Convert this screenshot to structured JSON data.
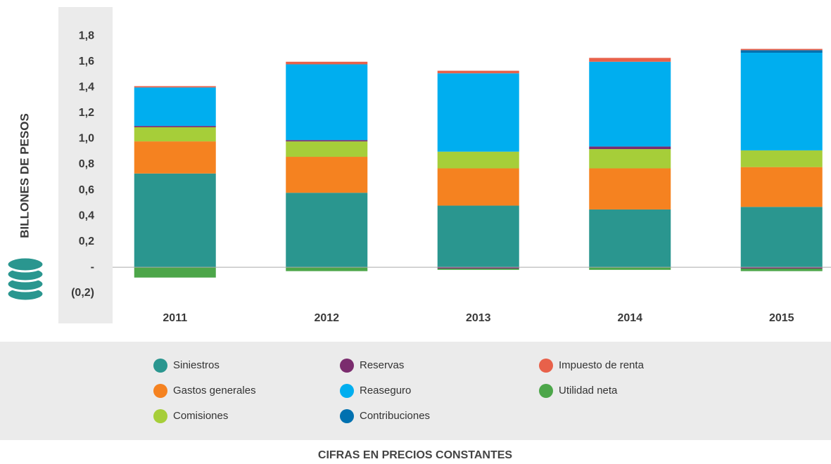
{
  "chart_data": {
    "type": "stacked_bar",
    "y_label": "BILLONES DE PESOS",
    "footer": "CIFRAS EN PRECIOS CONSTANTES",
    "categories": [
      "2011",
      "2012",
      "2013",
      "2014",
      "2015"
    ],
    "series": [
      {
        "name": "Siniestros",
        "color": "#2a968f",
        "values": [
          0.73,
          0.58,
          0.48,
          0.45,
          0.47
        ]
      },
      {
        "name": "Gastos generales",
        "color": "#f58220",
        "values": [
          0.25,
          0.28,
          0.29,
          0.32,
          0.31
        ]
      },
      {
        "name": "Comisiones",
        "color": "#a6ce39",
        "values": [
          0.11,
          0.12,
          0.13,
          0.15,
          0.13
        ]
      },
      {
        "name": "Reservas",
        "color": "#7b2c6e",
        "values": [
          0.01,
          0.01,
          -0.01,
          0.02,
          -0.01
        ]
      },
      {
        "name": "Reaseguro",
        "color": "#00aeef",
        "values": [
          0.3,
          0.59,
          0.61,
          0.66,
          0.76
        ]
      },
      {
        "name": "Contribuciones",
        "color": "#0071b0",
        "values": [
          0,
          0,
          0,
          0,
          0.02
        ]
      },
      {
        "name": "Impuesto de renta",
        "color": "#e8614a",
        "values": [
          0.01,
          0.02,
          0.02,
          0.03,
          0.01
        ]
      },
      {
        "name": "Utilidad neta",
        "color": "#4ca649",
        "values": [
          -0.08,
          -0.03,
          -0.01,
          -0.02,
          -0.02
        ]
      }
    ],
    "ylim": [
      -0.3,
      1.9
    ],
    "yticks": [
      {
        "value": -0.2,
        "label": "(0,2)"
      },
      {
        "value": 0,
        "label": "-"
      },
      {
        "value": 0.2,
        "label": "0,2"
      },
      {
        "value": 0.4,
        "label": "0,4"
      },
      {
        "value": 0.6,
        "label": "0,6"
      },
      {
        "value": 0.8,
        "label": "0,8"
      },
      {
        "value": 1.0,
        "label": "1,0"
      },
      {
        "value": 1.2,
        "label": "1,2"
      },
      {
        "value": 1.4,
        "label": "1,4"
      },
      {
        "value": 1.6,
        "label": "1,6"
      },
      {
        "value": 1.8,
        "label": "1,8"
      }
    ],
    "legend": "bottom"
  }
}
